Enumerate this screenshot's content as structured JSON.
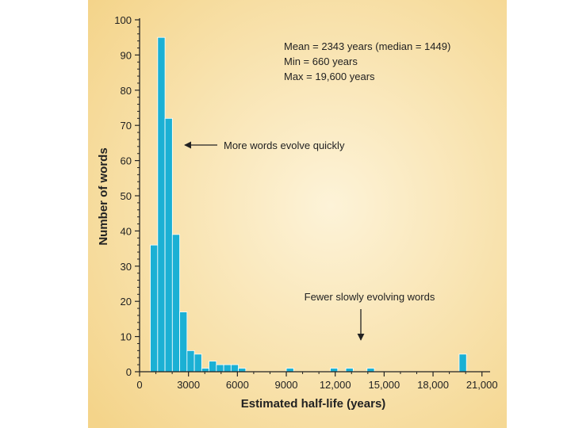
{
  "chart_data": {
    "type": "bar",
    "xlabel": "Estimated half-life (years)",
    "ylabel": "Number of words",
    "xlim": [
      0,
      21500
    ],
    "ylim": [
      0,
      100
    ],
    "bin_width": 450,
    "x_ticks": [
      0,
      3000,
      6000,
      9000,
      12000,
      15000,
      18000,
      21000
    ],
    "x_tick_labels": [
      "0",
      "3000",
      "6000",
      "9000",
      "12,000",
      "15,000",
      "18,000",
      "21,000"
    ],
    "y_ticks": [
      0,
      10,
      20,
      30,
      40,
      50,
      60,
      70,
      80,
      90,
      100
    ],
    "y_tick_labels": [
      "0",
      "10",
      "20",
      "30",
      "40",
      "50",
      "60",
      "70",
      "80",
      "90",
      "100"
    ],
    "x": [
      660,
      1110,
      1560,
      2010,
      2460,
      2910,
      3360,
      3810,
      4260,
      4710,
      5160,
      5610,
      6060,
      9000,
      11700,
      12650,
      13950,
      19600
    ],
    "values": [
      36,
      95,
      72,
      39,
      17,
      6,
      5,
      1,
      3,
      2,
      2,
      2,
      1,
      1,
      1,
      1,
      1,
      5
    ],
    "stats": {
      "line1": "Mean = 2343 years (median = 1449)",
      "line2": "Min = 660 years",
      "line3": "Max = 19,600 years"
    },
    "annotations": {
      "fast": "More words evolve quickly",
      "slow": "Fewer slowly evolving  words"
    },
    "colors": {
      "bar": "#1bb0d4",
      "bar_edge": "#ffffff",
      "background_light": "#fdf3d8",
      "background_dark": "#f4d48a",
      "axis": "#222222"
    }
  }
}
